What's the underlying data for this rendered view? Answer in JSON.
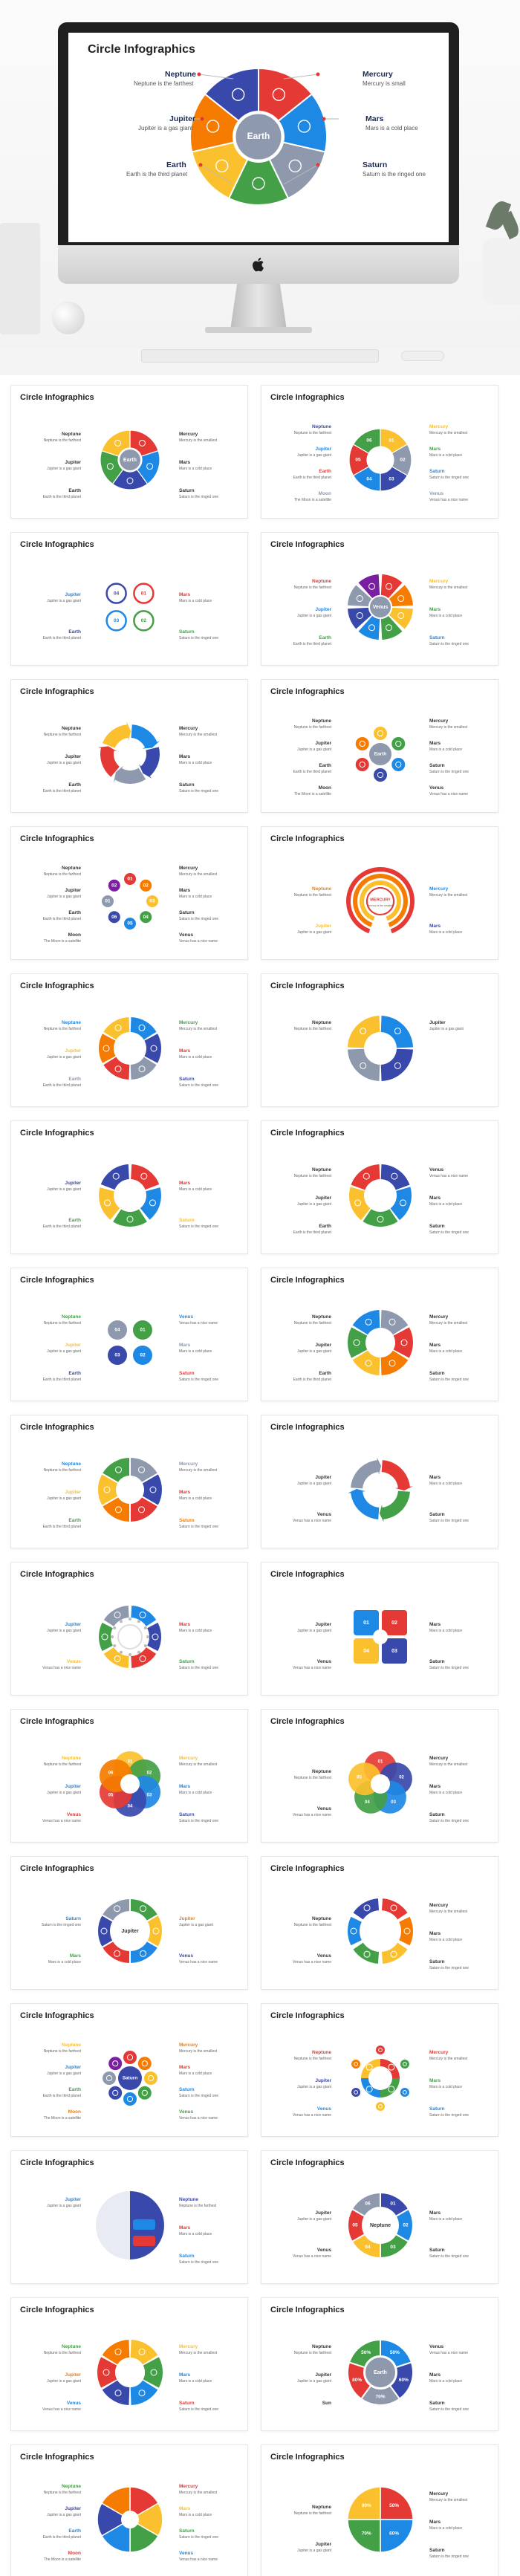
{
  "hero": {
    "title": "Circle Infographics",
    "center": "Earth",
    "left_items": [
      {
        "name": "Neptune",
        "desc": "Neptune is the farthest"
      },
      {
        "name": "Jupiter",
        "desc": "Jupiter is a gas giant"
      },
      {
        "name": "Earth",
        "desc": "Earth is the third planet"
      }
    ],
    "right_items": [
      {
        "name": "Mercury",
        "desc": "Mercury is small"
      },
      {
        "name": "Mars",
        "desc": "Mars is a cold place"
      },
      {
        "name": "Saturn",
        "desc": "Saturn is the ringed one"
      }
    ],
    "colors": [
      "#e53935",
      "#1e88e5",
      "#8e99ad",
      "#43a047",
      "#fbc02d",
      "#f57c00",
      "#3949ab"
    ]
  },
  "slide_title": "Circle Infographics",
  "labels": {
    "neptune": "Neptune",
    "jupiter": "Jupiter",
    "earth": "Earth",
    "mercury": "Mercury",
    "mars": "Mars",
    "saturn": "Saturn",
    "venus": "Venus",
    "moon": "Moon",
    "sun": "Sun",
    "neptune_d": "Neptune is the farthest",
    "jupiter_d": "Jupiter is a gas giant",
    "earth_d": "Earth is the third planet",
    "mercury_d": "Mercury is the smallest",
    "mars_d": "Mars is a cold place",
    "saturn_d": "Saturn is the ringed one",
    "venus_d": "Venus has a nice name",
    "moon_d": "The Moon is a satellite"
  },
  "centers": {
    "earth": "Earth",
    "venus": "Venus",
    "mercury": "MERCURY",
    "mercury_sub": "Mercury is the smallest",
    "jupiter": "Jupiter",
    "saturn": "Saturn",
    "neptune": "Neptune"
  },
  "numbers": [
    "01",
    "02",
    "03",
    "04",
    "05",
    "06"
  ],
  "percents": [
    "50%",
    "60%",
    "70%",
    "80%"
  ],
  "palette": {
    "red": "#e53935",
    "blue": "#1e88e5",
    "green": "#43a047",
    "yellow": "#fbc02d",
    "orange": "#f57c00",
    "indigo": "#3949ab",
    "grey": "#8e99ad",
    "purple": "#7b1fa2"
  }
}
